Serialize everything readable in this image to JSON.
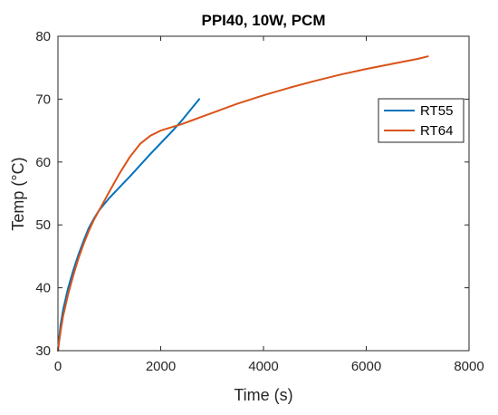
{
  "chart_data": {
    "type": "line",
    "title": "PPI40, 10W, PCM",
    "xlabel": "Time (s)",
    "ylabel": "Temp (°C)",
    "xlim": [
      0,
      8000
    ],
    "ylim": [
      30,
      80
    ],
    "xticks": [
      0,
      2000,
      4000,
      6000,
      8000
    ],
    "yticks": [
      30,
      40,
      50,
      60,
      70,
      80
    ],
    "grid": false,
    "legend_position": "top-right",
    "series": [
      {
        "name": "RT55",
        "color": "#0072BD",
        "x": [
          0,
          25,
          50,
          100,
          200,
          300,
          400,
          500,
          600,
          700,
          800,
          900,
          1000,
          1200,
          1400,
          1600,
          1800,
          2000,
          2200,
          2400,
          2600,
          2750
        ],
        "y": [
          30.0,
          32.0,
          34.0,
          36.5,
          40.0,
          42.8,
          45.3,
          47.5,
          49.5,
          51.0,
          52.3,
          53.3,
          54.3,
          56.0,
          57.7,
          59.5,
          61.3,
          63.0,
          64.7,
          66.5,
          68.5,
          70.0
        ]
      },
      {
        "name": "RT64",
        "color": "#D95319",
        "x": [
          0,
          25,
          50,
          100,
          200,
          300,
          400,
          500,
          600,
          700,
          800,
          900,
          1000,
          1200,
          1400,
          1600,
          1800,
          2000,
          2200,
          2400,
          2600,
          2800,
          3000,
          3500,
          4000,
          4500,
          5000,
          5500,
          6000,
          6500,
          7000,
          7200
        ],
        "y": [
          30.0,
          31.5,
          33.0,
          35.5,
          39.0,
          42.0,
          44.7,
          47.0,
          49.0,
          50.8,
          52.3,
          53.8,
          55.3,
          58.2,
          60.8,
          62.9,
          64.2,
          65.0,
          65.5,
          66.0,
          66.6,
          67.2,
          67.8,
          69.3,
          70.6,
          71.8,
          72.9,
          73.9,
          74.8,
          75.6,
          76.4,
          76.8
        ]
      }
    ]
  }
}
